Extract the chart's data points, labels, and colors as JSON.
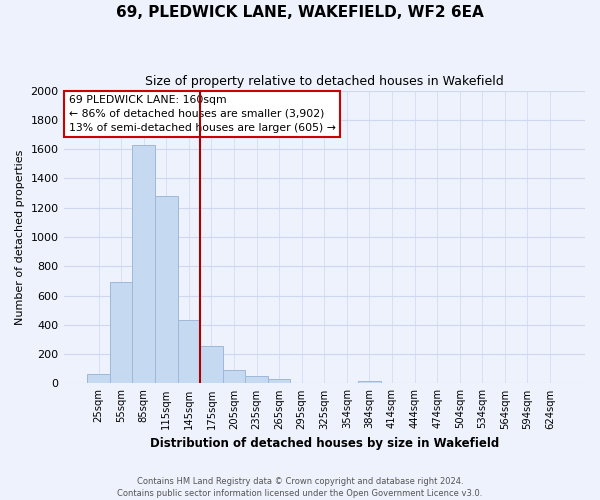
{
  "title": "69, PLEDWICK LANE, WAKEFIELD, WF2 6EA",
  "subtitle": "Size of property relative to detached houses in Wakefield",
  "xlabel": "Distribution of detached houses by size in Wakefield",
  "ylabel": "Number of detached properties",
  "bar_labels": [
    "25sqm",
    "55sqm",
    "85sqm",
    "115sqm",
    "145sqm",
    "175sqm",
    "205sqm",
    "235sqm",
    "265sqm",
    "295sqm",
    "325sqm",
    "354sqm",
    "384sqm",
    "414sqm",
    "444sqm",
    "474sqm",
    "504sqm",
    "534sqm",
    "564sqm",
    "594sqm",
    "624sqm"
  ],
  "bar_values": [
    65,
    695,
    1630,
    1280,
    435,
    255,
    90,
    52,
    28,
    0,
    0,
    0,
    14,
    0,
    0,
    0,
    0,
    0,
    0,
    0,
    0
  ],
  "bar_color": "#c5d9f0",
  "bar_edge_color": "#a0b8d8",
  "property_line_color": "#aa0000",
  "annotation_title": "69 PLEDWICK LANE: 160sqm",
  "annotation_line1": "← 86% of detached houses are smaller (3,902)",
  "annotation_line2": "13% of semi-detached houses are larger (605) →",
  "annotation_box_color": "#ffffff",
  "annotation_box_edge": "#cc0000",
  "ylim": [
    0,
    2000
  ],
  "yticks": [
    0,
    200,
    400,
    600,
    800,
    1000,
    1200,
    1400,
    1600,
    1800,
    2000
  ],
  "grid_color": "#d0d8f0",
  "bg_color": "#eef2fc",
  "footer_line1": "Contains HM Land Registry data © Crown copyright and database right 2024.",
  "footer_line2": "Contains public sector information licensed under the Open Government Licence v3.0."
}
